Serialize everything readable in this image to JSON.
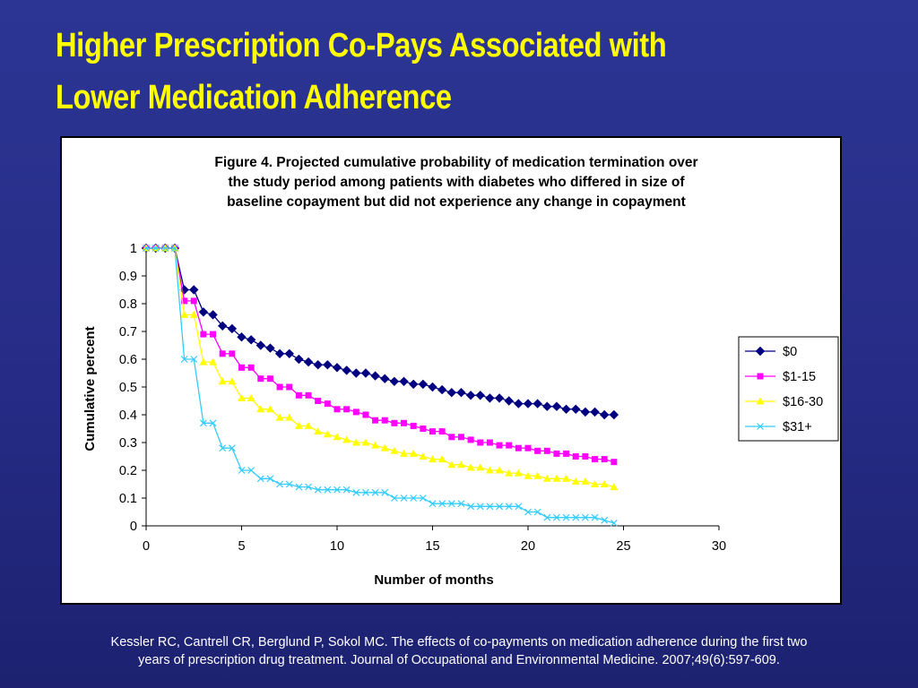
{
  "slide": {
    "title_line1": "Higher Prescription Co-Pays Associated with",
    "title_line2": "Lower Medication Adherence",
    "citation_line1": "Kessler RC, Cantrell CR, Berglund P, Sokol MC.  The effects of co-payments on medication adherence during the first two",
    "citation_line2": "years of prescription drug treatment.  Journal of Occupational and Environmental Medicine. 2007;49(6):597-609.",
    "title_color": "#ffff00",
    "background_color": "#2a3290"
  },
  "chart_data": {
    "type": "line",
    "title_lines": [
      "Figure 4. Projected cumulative probability of medication termination over",
      "the study period among patients with diabetes who differed in size of",
      "baseline copayment but did not experience any change in copayment"
    ],
    "xlabel": "Number of months",
    "ylabel": "Cumulative percent",
    "xlim": [
      0,
      30
    ],
    "ylim": [
      0,
      1
    ],
    "x_ticks": [
      0,
      5,
      10,
      15,
      20,
      25,
      30
    ],
    "y_ticks": [
      0,
      0.1,
      0.2,
      0.3,
      0.4,
      0.5,
      0.6,
      0.7,
      0.8,
      0.9,
      1
    ],
    "grid": false,
    "legend_position": "right",
    "x": [
      0,
      0.5,
      1,
      1.5,
      2,
      2.5,
      3,
      3.5,
      4,
      4.5,
      5,
      5.5,
      6,
      6.5,
      7,
      7.5,
      8,
      8.5,
      9,
      9.5,
      10,
      10.5,
      11,
      11.5,
      12,
      12.5,
      13,
      13.5,
      14,
      14.5,
      15,
      15.5,
      16,
      16.5,
      17,
      17.5,
      18,
      18.5,
      19,
      19.5,
      20,
      20.5,
      21,
      21.5,
      22,
      22.5,
      23,
      23.5,
      24,
      24.5
    ],
    "series": [
      {
        "name": "$0",
        "color": "#000080",
        "marker": "diamond",
        "values": [
          1,
          1,
          1,
          1,
          0.85,
          0.85,
          0.77,
          0.76,
          0.72,
          0.71,
          0.68,
          0.67,
          0.65,
          0.64,
          0.62,
          0.62,
          0.6,
          0.59,
          0.58,
          0.58,
          0.57,
          0.56,
          0.55,
          0.55,
          0.54,
          0.53,
          0.52,
          0.52,
          0.51,
          0.51,
          0.5,
          0.49,
          0.48,
          0.48,
          0.47,
          0.47,
          0.46,
          0.46,
          0.45,
          0.44,
          0.44,
          0.44,
          0.43,
          0.43,
          0.42,
          0.42,
          0.41,
          0.41,
          0.4,
          0.4
        ]
      },
      {
        "name": "$1-15",
        "color": "#ff00ff",
        "marker": "square",
        "values": [
          1,
          1,
          1,
          1,
          0.81,
          0.81,
          0.69,
          0.69,
          0.62,
          0.62,
          0.57,
          0.57,
          0.53,
          0.53,
          0.5,
          0.5,
          0.47,
          0.47,
          0.45,
          0.44,
          0.42,
          0.42,
          0.41,
          0.4,
          0.38,
          0.38,
          0.37,
          0.37,
          0.36,
          0.35,
          0.34,
          0.34,
          0.32,
          0.32,
          0.31,
          0.3,
          0.3,
          0.29,
          0.29,
          0.28,
          0.28,
          0.27,
          0.27,
          0.26,
          0.26,
          0.25,
          0.25,
          0.24,
          0.24,
          0.23
        ]
      },
      {
        "name": "$16-30",
        "color": "#ffff00",
        "marker": "triangle",
        "values": [
          1,
          1,
          1,
          1,
          0.76,
          0.76,
          0.59,
          0.59,
          0.52,
          0.52,
          0.46,
          0.46,
          0.42,
          0.42,
          0.39,
          0.39,
          0.36,
          0.36,
          0.34,
          0.33,
          0.32,
          0.31,
          0.3,
          0.3,
          0.29,
          0.28,
          0.27,
          0.26,
          0.26,
          0.25,
          0.24,
          0.24,
          0.22,
          0.22,
          0.21,
          0.21,
          0.2,
          0.2,
          0.19,
          0.19,
          0.18,
          0.18,
          0.17,
          0.17,
          0.17,
          0.16,
          0.16,
          0.15,
          0.15,
          0.14
        ]
      },
      {
        "name": "$31+",
        "color": "#33ccff",
        "marker": "x",
        "values": [
          1,
          1,
          1,
          1,
          0.6,
          0.6,
          0.37,
          0.37,
          0.28,
          0.28,
          0.2,
          0.2,
          0.17,
          0.17,
          0.15,
          0.15,
          0.14,
          0.14,
          0.13,
          0.13,
          0.13,
          0.13,
          0.12,
          0.12,
          0.12,
          0.12,
          0.1,
          0.1,
          0.1,
          0.1,
          0.08,
          0.08,
          0.08,
          0.08,
          0.07,
          0.07,
          0.07,
          0.07,
          0.07,
          0.07,
          0.05,
          0.05,
          0.03,
          0.03,
          0.03,
          0.03,
          0.03,
          0.03,
          0.02,
          0.01
        ]
      }
    ]
  }
}
